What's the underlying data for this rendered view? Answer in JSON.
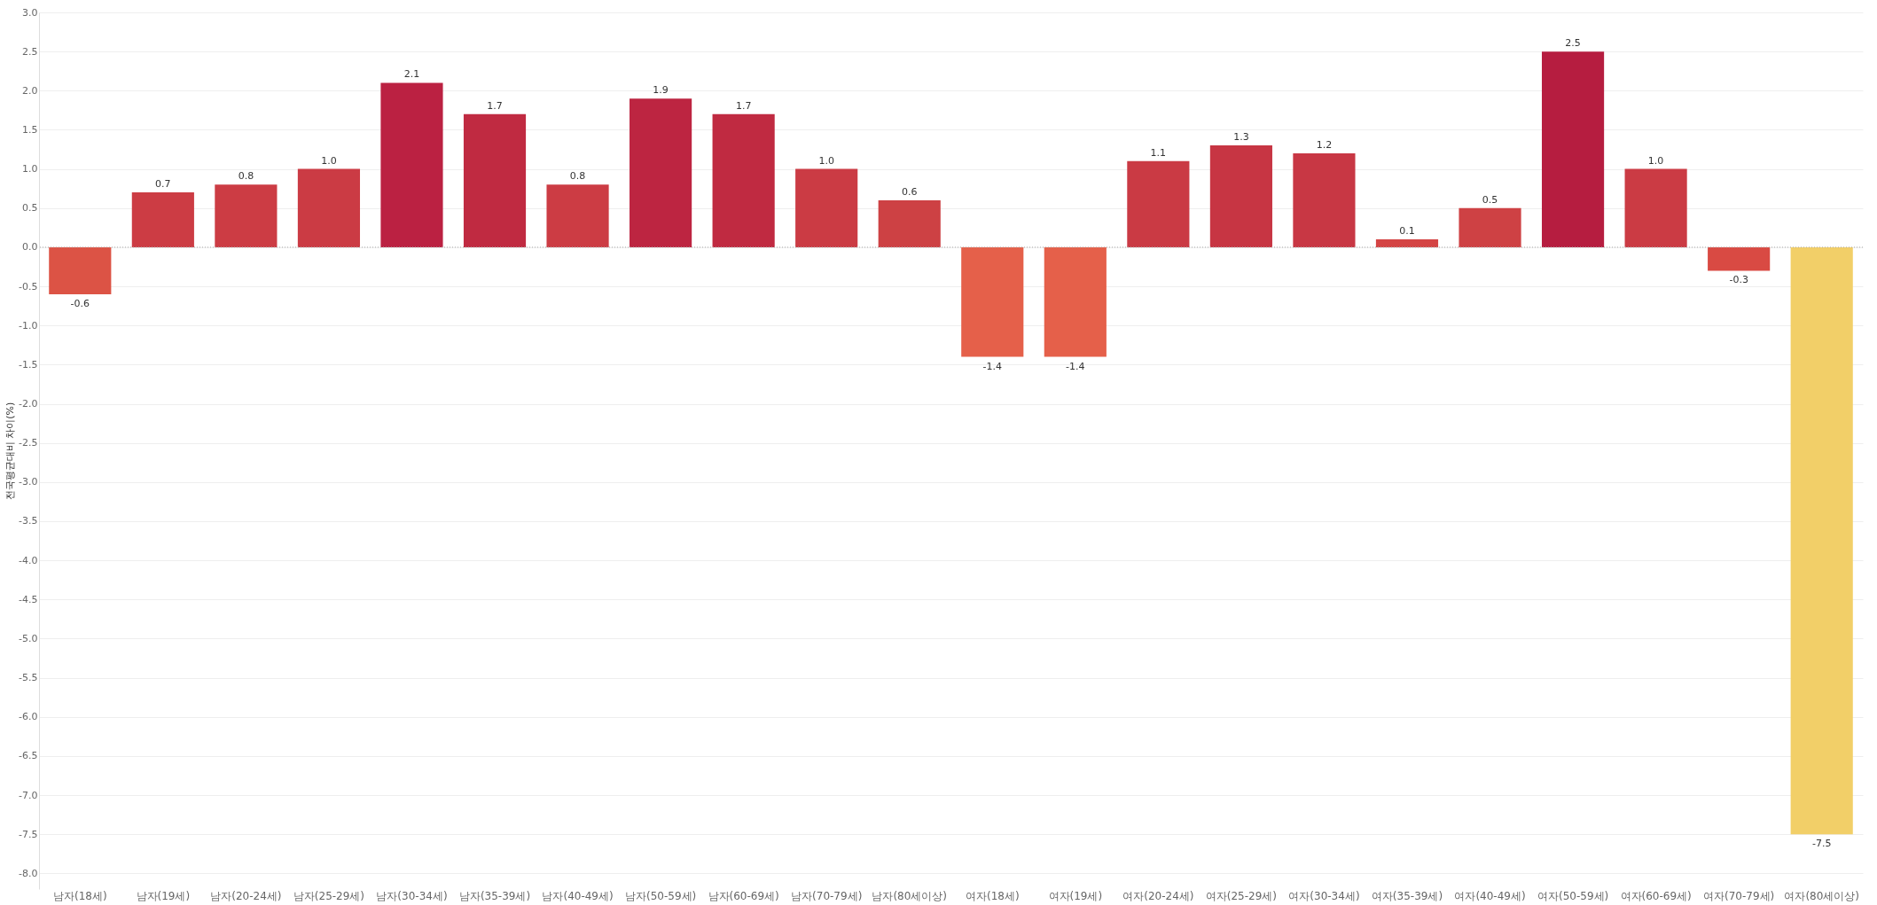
{
  "chart_data": {
    "type": "bar",
    "ylabel": "전국평균대비 차이(%)",
    "categories": [
      "남자(18세)",
      "남자(19세)",
      "남자(20-24세)",
      "남자(25-29세)",
      "남자(30-34세)",
      "남자(35-39세)",
      "남자(40-49세)",
      "남자(50-59세)",
      "남자(60-69세)",
      "남자(70-79세)",
      "남자(80세이상)",
      "여자(18세)",
      "여자(19세)",
      "여자(20-24세)",
      "여자(25-29세)",
      "여자(30-34세)",
      "여자(35-39세)",
      "여자(40-49세)",
      "여자(50-59세)",
      "여자(60-69세)",
      "여자(70-79세)",
      "여자(80세이상)"
    ],
    "values": [
      -0.6,
      0.7,
      0.8,
      1.0,
      2.1,
      1.7,
      0.8,
      1.9,
      1.7,
      1.0,
      0.6,
      -1.4,
      -1.4,
      1.1,
      1.3,
      1.2,
      0.1,
      0.5,
      2.5,
      1.0,
      -0.3,
      -7.5
    ],
    "colors": [
      "#dc5345",
      "#cc3c44",
      "#cc3c44",
      "#cb3b44",
      "#bb2142",
      "#c02a41",
      "#cc3c44",
      "#bd2541",
      "#c02a41",
      "#cb3b44",
      "#cd4144",
      "#e5604a",
      "#e5604a",
      "#ca3a44",
      "#c73543",
      "#c83744",
      "#d44444",
      "#ce4144",
      "#b61d40",
      "#cb3b44",
      "#d94a43",
      "#f2cf68"
    ],
    "value_labels": [
      "-0.6",
      "0.7",
      "0.8",
      "1.0",
      "2.1",
      "1.7",
      "0.8",
      "1.9",
      "1.7",
      "1.0",
      "0.6",
      "-1.4",
      "-1.4",
      "1.1",
      "1.3",
      "1.2",
      "0.1",
      "0.5",
      "2.5",
      "1.0",
      "-0.3",
      "-7.5"
    ],
    "ylim": [
      -8.2,
      3.0
    ],
    "yticks": [
      {
        "value": 3,
        "label": "3.0"
      },
      {
        "value": 2.5,
        "label": "2.5"
      },
      {
        "value": 2,
        "label": "2.0"
      },
      {
        "value": 1.5,
        "label": "1.5"
      },
      {
        "value": 1,
        "label": "1.0"
      },
      {
        "value": 0.5,
        "label": "0.5"
      },
      {
        "value": 0,
        "label": "0.0"
      },
      {
        "value": -0.5,
        "label": "-0.5"
      },
      {
        "value": -1,
        "label": "-1.0"
      },
      {
        "value": -1.5,
        "label": "-1.5"
      },
      {
        "value": -2,
        "label": "-2.0"
      },
      {
        "value": -2.5,
        "label": "-2.5"
      },
      {
        "value": -3,
        "label": "-3.0"
      },
      {
        "value": -3.5,
        "label": "-3.5"
      },
      {
        "value": -4,
        "label": "-4.0"
      },
      {
        "value": -4.5,
        "label": "-4.5"
      },
      {
        "value": -5,
        "label": "-5.0"
      },
      {
        "value": -5.5,
        "label": "-5.5"
      },
      {
        "value": -6,
        "label": "-6.0"
      },
      {
        "value": -6.5,
        "label": "-6.5"
      },
      {
        "value": -7,
        "label": "-7.0"
      },
      {
        "value": -7.5,
        "label": "-7.5"
      },
      {
        "value": -8,
        "label": "-8.0"
      }
    ],
    "grid": "y",
    "ref_lines": [
      {
        "axis": "y",
        "value": 0,
        "color": "#aaaaaa",
        "line_style": "dotted"
      }
    ]
  }
}
